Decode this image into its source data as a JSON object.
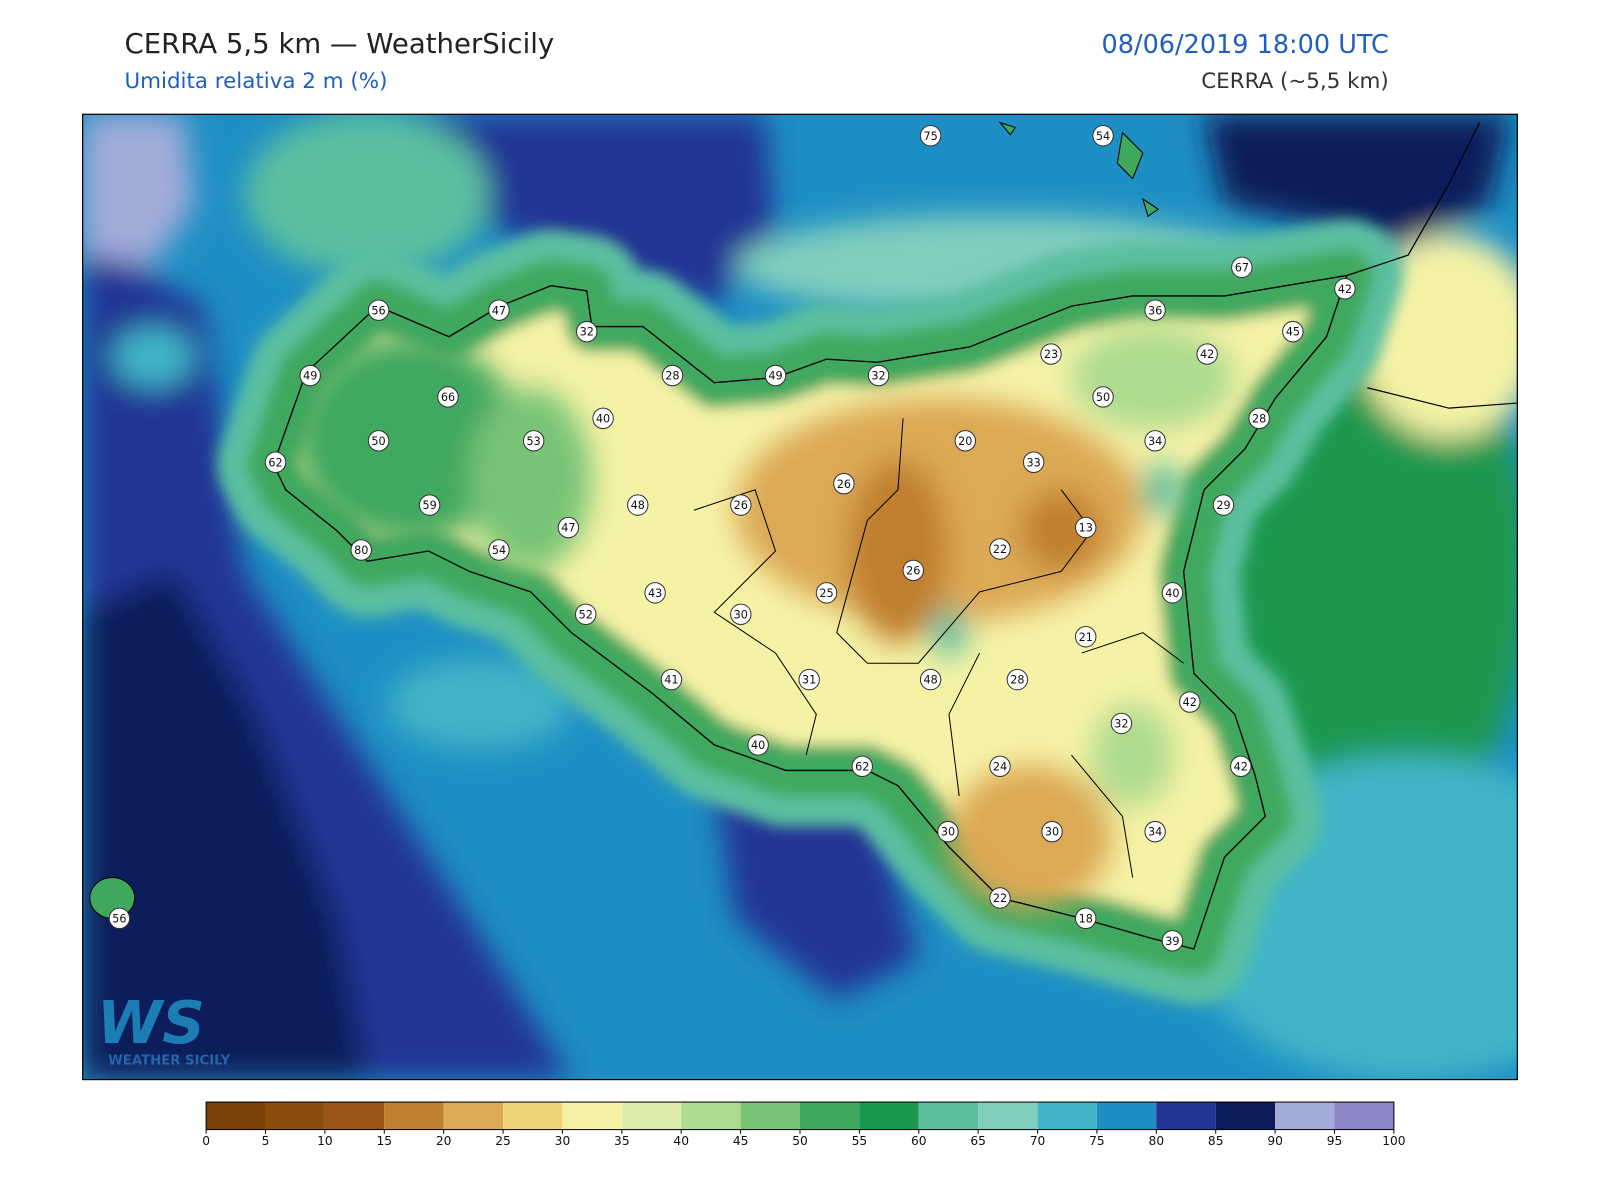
{
  "header": {
    "title": "CERRA 5,5 km — WeatherSicily",
    "subtitle": "Umidita relativa 2 m (%)",
    "datetime": "08/06/2019 18:00 UTC",
    "model": "CERRA (~5,5 km)"
  },
  "stations": [
    75,
    54,
    67,
    42,
    56,
    47,
    32,
    36,
    45,
    23,
    42,
    49,
    28,
    49,
    32,
    66,
    50,
    40,
    28,
    50,
    53,
    20,
    34,
    62,
    33,
    26,
    59,
    48,
    26,
    29,
    47,
    13,
    22,
    80,
    54,
    26,
    43,
    25,
    40,
    52,
    30,
    21,
    41,
    31,
    48,
    28,
    42,
    32,
    40,
    62,
    24,
    42,
    30,
    30,
    34,
    22,
    18,
    39,
    56
  ],
  "logo": {
    "mark": "WS",
    "text": "WEATHER SICILY"
  },
  "colorbar": {
    "ticks": [
      0,
      5,
      10,
      15,
      20,
      25,
      30,
      35,
      40,
      45,
      50,
      55,
      60,
      65,
      70,
      75,
      80,
      85,
      90,
      95,
      100
    ],
    "colors": [
      "#7a4208",
      "#8b4c0e",
      "#9a5516",
      "#c07f2e",
      "#dca954",
      "#f0d47a",
      "#f5f2a6",
      "#dcecaa",
      "#aedb8f",
      "#78c477",
      "#3fa85e",
      "#1a9850",
      "#5bbfa0",
      "#80cfbe",
      "#3fb5c7",
      "#1e8fc4",
      "#233594",
      "#0c1c5a",
      "#a3acd9",
      "#8c86c6"
    ]
  }
}
